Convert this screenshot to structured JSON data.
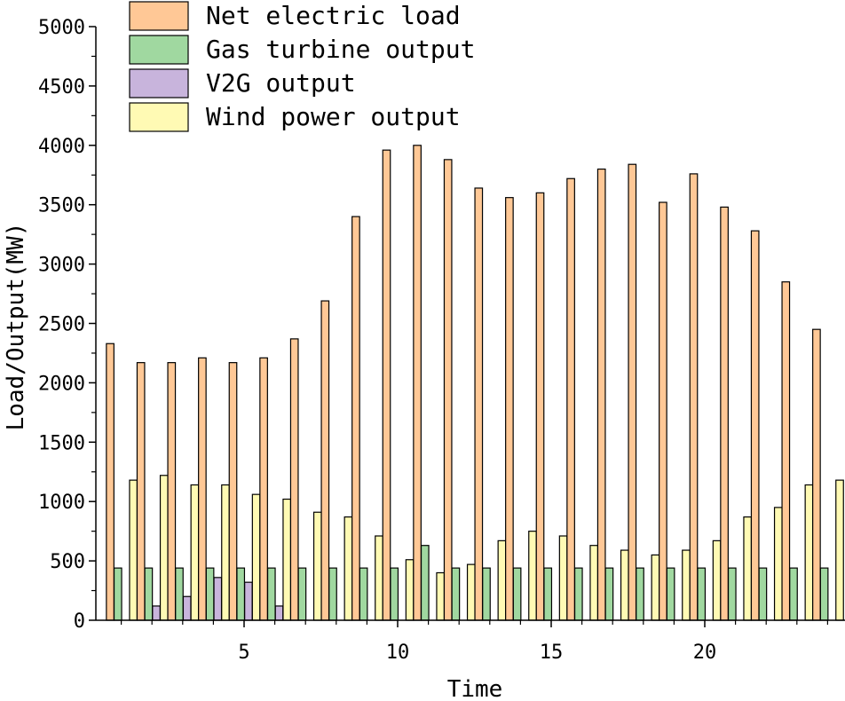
{
  "chart_data": {
    "type": "bar",
    "xlabel": "Time",
    "ylabel": "Load/Output(MW)",
    "ylim": [
      0,
      5000
    ],
    "yticks": [
      0,
      500,
      1000,
      1500,
      2000,
      2500,
      3000,
      3500,
      4000,
      4500,
      5000
    ],
    "xticks": [
      5,
      10,
      15,
      20
    ],
    "x": [
      1,
      2,
      3,
      4,
      5,
      6,
      7,
      8,
      9,
      10,
      11,
      12,
      13,
      14,
      15,
      16,
      17,
      18,
      19,
      20,
      21,
      22,
      23,
      24
    ],
    "legend_position": "top-left",
    "grid": false,
    "series": [
      {
        "name": "Net electric load",
        "color": "#FFC896",
        "values": [
          2330,
          2170,
          2170,
          2210,
          2170,
          2210,
          2370,
          2690,
          3400,
          3960,
          4000,
          3880,
          3640,
          3560,
          3600,
          3720,
          3800,
          3840,
          3520,
          3760,
          3480,
          3280,
          2850,
          2450
        ]
      },
      {
        "name": "Gas turbine output",
        "color": "#A0D8A0",
        "values": [
          440,
          440,
          440,
          440,
          440,
          440,
          440,
          440,
          440,
          440,
          630,
          440,
          440,
          440,
          440,
          440,
          440,
          440,
          440,
          440,
          440,
          440,
          440,
          440
        ]
      },
      {
        "name": "V2G output",
        "color": "#C8B4DC",
        "values": [
          0,
          120,
          200,
          360,
          320,
          120,
          0,
          0,
          0,
          0,
          0,
          0,
          0,
          0,
          0,
          0,
          0,
          0,
          0,
          0,
          0,
          0,
          0,
          0
        ]
      },
      {
        "name": "Wind power output",
        "color": "#FFFAB4",
        "values": [
          1180,
          1220,
          1140,
          1140,
          1060,
          1020,
          910,
          870,
          710,
          510,
          400,
          470,
          670,
          750,
          710,
          630,
          590,
          550,
          590,
          670,
          870,
          950,
          1140,
          1180
        ]
      }
    ]
  }
}
